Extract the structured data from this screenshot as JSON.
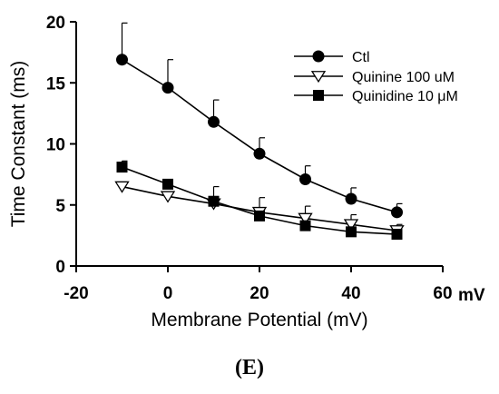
{
  "caption": "(E)",
  "x_unit_label": "mV",
  "chart_data": {
    "type": "line",
    "xlabel": "Membrane Potential (mV)",
    "ylabel": "Time Constant (ms)",
    "xlim": [
      -20,
      60
    ],
    "ylim": [
      0,
      20
    ],
    "x_ticks": [
      -20,
      0,
      20,
      40,
      60
    ],
    "y_ticks": [
      0,
      5,
      10,
      15,
      20
    ],
    "x_tick_labels": [
      "-20",
      "0",
      "20",
      "40",
      "60"
    ],
    "y_tick_labels": [
      "0",
      "5",
      "10",
      "15",
      "20"
    ],
    "grid": false,
    "legend_position": "top-right",
    "series": [
      {
        "name": "Ctl",
        "marker": "filled-circle",
        "x": [
          -10,
          0,
          10,
          20,
          30,
          40,
          50
        ],
        "y": [
          16.9,
          14.6,
          11.8,
          9.2,
          7.1,
          5.5,
          4.4
        ],
        "error": [
          3.0,
          2.3,
          1.8,
          1.3,
          1.1,
          0.9,
          0.7
        ]
      },
      {
        "name": "Quinine 100 uM",
        "marker": "open-triangle-down",
        "x": [
          -10,
          0,
          10,
          20,
          30,
          40,
          50
        ],
        "y": [
          6.5,
          5.7,
          5.1,
          4.4,
          3.9,
          3.4,
          2.9
        ],
        "error": [
          0.0,
          0.0,
          0.0,
          1.2,
          1.0,
          0.8,
          0.5
        ]
      },
      {
        "name": "Quinidine 10 μM",
        "marker": "filled-square",
        "x": [
          -10,
          0,
          10,
          20,
          30,
          40,
          50
        ],
        "y": [
          8.1,
          6.7,
          5.3,
          4.1,
          3.3,
          2.8,
          2.6
        ],
        "error": [
          0.5,
          0.3,
          1.2,
          0.0,
          0.0,
          0.0,
          0.0
        ]
      }
    ]
  }
}
